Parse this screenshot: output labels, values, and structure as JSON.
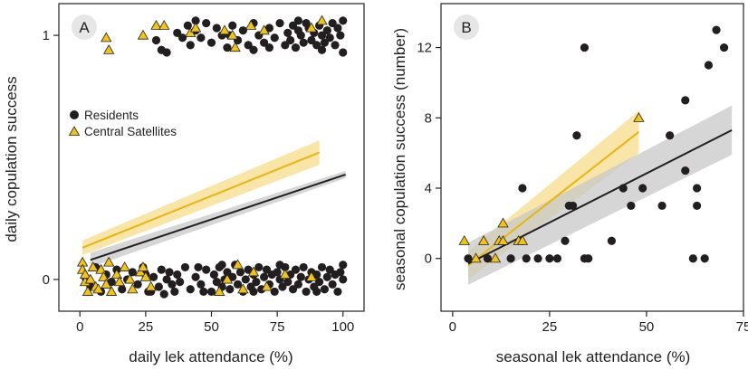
{
  "colors": {
    "resident": "#231f20",
    "satellite": "#f2c21b",
    "satellite_band": "#f6dc8a",
    "resident_band": "#c8c8c8",
    "axis": "#222222"
  },
  "chart_data": [
    {
      "type": "scatter",
      "panel_label": "A",
      "xlabel": "daily lek attendance (%)",
      "ylabel": "daily copulation success",
      "xlim": [
        -8,
        108
      ],
      "ylim": [
        -0.13,
        1.13
      ],
      "x_ticks": [
        0,
        25,
        50,
        75,
        100
      ],
      "y_ticks": [
        0,
        1
      ],
      "legend": {
        "placement": "top-left",
        "entries": [
          "Residents",
          "Central Satellites"
        ]
      },
      "series": [
        {
          "name": "Residents",
          "marker": "circle",
          "points": [
            [
              29,
              0.98
            ],
            [
              31,
              0.94
            ],
            [
              33,
              0.93
            ],
            [
              37,
              1.01
            ],
            [
              39,
              0.99
            ],
            [
              41,
              1.04
            ],
            [
              42,
              0.96
            ],
            [
              44,
              1.02
            ],
            [
              46,
              0.99
            ],
            [
              48,
              1.05
            ],
            [
              50,
              0.97
            ],
            [
              52,
              1.03
            ],
            [
              54,
              1.0
            ],
            [
              56,
              0.95
            ],
            [
              58,
              1.04
            ],
            [
              60,
              0.98
            ],
            [
              62,
              1.02
            ],
            [
              64,
              0.96
            ],
            [
              66,
              1.05
            ],
            [
              68,
              1.0
            ],
            [
              70,
              0.97
            ],
            [
              72,
              1.03
            ],
            [
              74,
              0.99
            ],
            [
              76,
              1.05
            ],
            [
              78,
              0.96
            ],
            [
              79,
              1.01
            ],
            [
              80,
              0.98
            ],
            [
              81,
              1.04
            ],
            [
              82,
              0.95
            ],
            [
              83,
              1.02
            ],
            [
              84,
              1.0
            ],
            [
              85,
              0.97
            ],
            [
              86,
              1.05
            ],
            [
              87,
              1.03
            ],
            [
              88,
              0.98
            ],
            [
              89,
              1.01
            ],
            [
              90,
              0.96
            ],
            [
              91,
              1.04
            ],
            [
              92,
              1.0
            ],
            [
              93,
              0.97
            ],
            [
              94,
              1.02
            ],
            [
              95,
              0.99
            ],
            [
              96,
              1.05
            ],
            [
              97,
              0.96
            ],
            [
              98,
              1.03
            ],
            [
              99,
              1.0
            ],
            [
              100,
              0.93
            ],
            [
              100,
              1.06
            ],
            [
              44,
              1.06
            ],
            [
              57,
              1.0
            ],
            [
              66,
              0.94
            ],
            [
              72,
              0.95
            ],
            [
              83,
              1.06
            ],
            [
              92,
              0.94
            ],
            [
              2,
              0.01
            ],
            [
              4,
              -0.03
            ],
            [
              6,
              0.05
            ],
            [
              8,
              -0.05
            ],
            [
              10,
              0.02
            ],
            [
              12,
              -0.01
            ],
            [
              14,
              0.04
            ],
            [
              16,
              -0.04
            ],
            [
              18,
              0.0
            ],
            [
              20,
              0.03
            ],
            [
              22,
              -0.02
            ],
            [
              24,
              0.05
            ],
            [
              26,
              -0.05
            ],
            [
              28,
              0.01
            ],
            [
              30,
              -0.03
            ],
            [
              31,
              0.04
            ],
            [
              32,
              -0.06
            ],
            [
              33,
              0.0
            ],
            [
              34,
              0.03
            ],
            [
              35,
              -0.02
            ],
            [
              36,
              -0.05
            ],
            [
              37,
              0.02
            ],
            [
              38,
              -0.01
            ],
            [
              40,
              0.05
            ],
            [
              42,
              -0.04
            ],
            [
              44,
              0.01
            ],
            [
              46,
              -0.02
            ],
            [
              48,
              0.04
            ],
            [
              50,
              -0.05
            ],
            [
              51,
              0.02
            ],
            [
              52,
              -0.01
            ],
            [
              53,
              0.05
            ],
            [
              54,
              -0.03
            ],
            [
              55,
              0.0
            ],
            [
              56,
              0.03
            ],
            [
              57,
              -0.04
            ],
            [
              58,
              0.01
            ],
            [
              59,
              0.06
            ],
            [
              60,
              -0.02
            ],
            [
              61,
              0.03
            ],
            [
              62,
              -0.05
            ],
            [
              63,
              0.0
            ],
            [
              64,
              0.04
            ],
            [
              65,
              -0.03
            ],
            [
              66,
              0.02
            ],
            [
              67,
              -0.01
            ],
            [
              68,
              0.05
            ],
            [
              69,
              -0.04
            ],
            [
              70,
              0.01
            ],
            [
              71,
              0.04
            ],
            [
              72,
              -0.02
            ],
            [
              73,
              0.02
            ],
            [
              74,
              -0.05
            ],
            [
              75,
              0.03
            ],
            [
              76,
              0.0
            ],
            [
              77,
              -0.03
            ],
            [
              78,
              0.05
            ],
            [
              79,
              -0.01
            ],
            [
              80,
              0.02
            ],
            [
              81,
              -0.04
            ],
            [
              82,
              0.04
            ],
            [
              83,
              -0.02
            ],
            [
              84,
              0.01
            ],
            [
              85,
              0.05
            ],
            [
              86,
              -0.05
            ],
            [
              87,
              0.0
            ],
            [
              88,
              0.03
            ],
            [
              89,
              -0.03
            ],
            [
              90,
              0.02
            ],
            [
              91,
              -0.01
            ],
            [
              92,
              0.05
            ],
            [
              93,
              -0.04
            ],
            [
              94,
              0.01
            ],
            [
              95,
              0.04
            ],
            [
              96,
              -0.02
            ],
            [
              97,
              0.02
            ],
            [
              98,
              -0.05
            ],
            [
              99,
              0.03
            ],
            [
              100,
              0.0
            ],
            [
              100,
              0.06
            ],
            [
              25,
              0.02
            ],
            [
              27,
              -0.05
            ],
            [
              45,
              0.05
            ],
            [
              47,
              -0.05
            ],
            [
              54,
              0.06
            ],
            [
              66,
              -0.05
            ],
            [
              76,
              0.06
            ],
            [
              90,
              -0.05
            ]
          ]
        },
        {
          "name": "Central Satellites",
          "marker": "triangle",
          "points": [
            [
              10,
              0.99
            ],
            [
              11,
              0.94
            ],
            [
              24,
              1.0
            ],
            [
              29,
              1.04
            ],
            [
              32,
              1.04
            ],
            [
              42,
              1.01
            ],
            [
              44,
              1.03
            ],
            [
              55,
              1.02
            ],
            [
              58,
              1.0
            ],
            [
              59,
              0.95
            ],
            [
              65,
              1.04
            ],
            [
              70,
              1.02
            ],
            [
              88,
              1.03
            ],
            [
              92,
              1.06
            ],
            [
              1,
              0.07
            ],
            [
              1,
              0.04
            ],
            [
              2,
              -0.01
            ],
            [
              2,
              0.02
            ],
            [
              3,
              -0.05
            ],
            [
              4,
              0.0
            ],
            [
              5,
              0.05
            ],
            [
              6,
              -0.03
            ],
            [
              7,
              -0.04
            ],
            [
              8,
              0.04
            ],
            [
              9,
              0.01
            ],
            [
              10,
              -0.02
            ],
            [
              11,
              0.07
            ],
            [
              12,
              -0.05
            ],
            [
              14,
              0.02
            ],
            [
              15,
              -0.01
            ],
            [
              17,
              0.05
            ],
            [
              19,
              0.0
            ],
            [
              20,
              -0.04
            ],
            [
              23,
              0.03
            ],
            [
              24,
              0.05
            ],
            [
              25,
              0.01
            ],
            [
              27,
              -0.03
            ],
            [
              53,
              -0.05
            ],
            [
              56,
              0.0
            ],
            [
              60,
              0.06
            ],
            [
              62,
              -0.04
            ],
            [
              66,
              0.03
            ],
            [
              71,
              -0.03
            ],
            [
              78,
              0.02
            ],
            [
              88,
              0.01
            ]
          ]
        }
      ],
      "fits": [
        {
          "name": "Central Satellites",
          "x_range": [
            1,
            91
          ],
          "y_range": [
            0.13,
            0.52
          ],
          "ci_halfwidth": [
            0.03,
            0.05
          ]
        },
        {
          "name": "Residents",
          "x_range": [
            4,
            101
          ],
          "y_range": [
            0.08,
            0.43
          ],
          "ci_halfwidth": [
            0.03,
            0.015
          ]
        }
      ]
    },
    {
      "type": "scatter",
      "panel_label": "B",
      "xlabel": "seasonal lek attendance (%)",
      "ylabel": "seasonal copulation success (number)",
      "xlim": [
        -3,
        75
      ],
      "ylim": [
        -3,
        14.5
      ],
      "x_ticks": [
        0,
        25,
        50,
        75
      ],
      "y_ticks": [
        0,
        4,
        8,
        12
      ],
      "series": [
        {
          "name": "Residents",
          "marker": "circle",
          "points": [
            [
              4,
              0
            ],
            [
              9,
              0
            ],
            [
              15,
              0
            ],
            [
              18,
              4
            ],
            [
              19,
              0
            ],
            [
              22,
              0
            ],
            [
              25,
              0
            ],
            [
              27,
              0
            ],
            [
              29,
              1
            ],
            [
              30,
              3
            ],
            [
              31,
              3
            ],
            [
              32,
              7
            ],
            [
              34,
              12
            ],
            [
              34,
              0
            ],
            [
              41,
              1
            ],
            [
              44,
              4
            ],
            [
              46,
              3
            ],
            [
              49,
              4
            ],
            [
              54,
              3
            ],
            [
              56,
              7
            ],
            [
              60,
              5
            ],
            [
              60,
              9
            ],
            [
              62,
              0
            ],
            [
              63,
              3
            ],
            [
              63,
              4
            ],
            [
              65,
              0
            ],
            [
              66,
              11
            ],
            [
              68,
              13
            ],
            [
              70,
              12
            ],
            [
              35,
              0
            ]
          ]
        },
        {
          "name": "Central Satellites",
          "marker": "triangle",
          "points": [
            [
              3,
              1
            ],
            [
              6,
              0
            ],
            [
              8,
              1
            ],
            [
              11,
              0
            ],
            [
              12,
              1
            ],
            [
              13,
              2
            ],
            [
              13,
              1
            ],
            [
              17,
              1
            ],
            [
              18,
              1
            ],
            [
              48,
              8
            ]
          ]
        }
      ],
      "fits": [
        {
          "name": "Central Satellites",
          "x_range": [
            4,
            48
          ],
          "y_range": [
            -0.4,
            7.2
          ],
          "ci_halfwidth": [
            0.8,
            1.2
          ]
        },
        {
          "name": "Residents",
          "x_range": [
            4,
            72
          ],
          "y_range": [
            -0.3,
            7.3
          ],
          "ci_halfwidth": [
            1.2,
            1.4
          ]
        }
      ]
    }
  ]
}
